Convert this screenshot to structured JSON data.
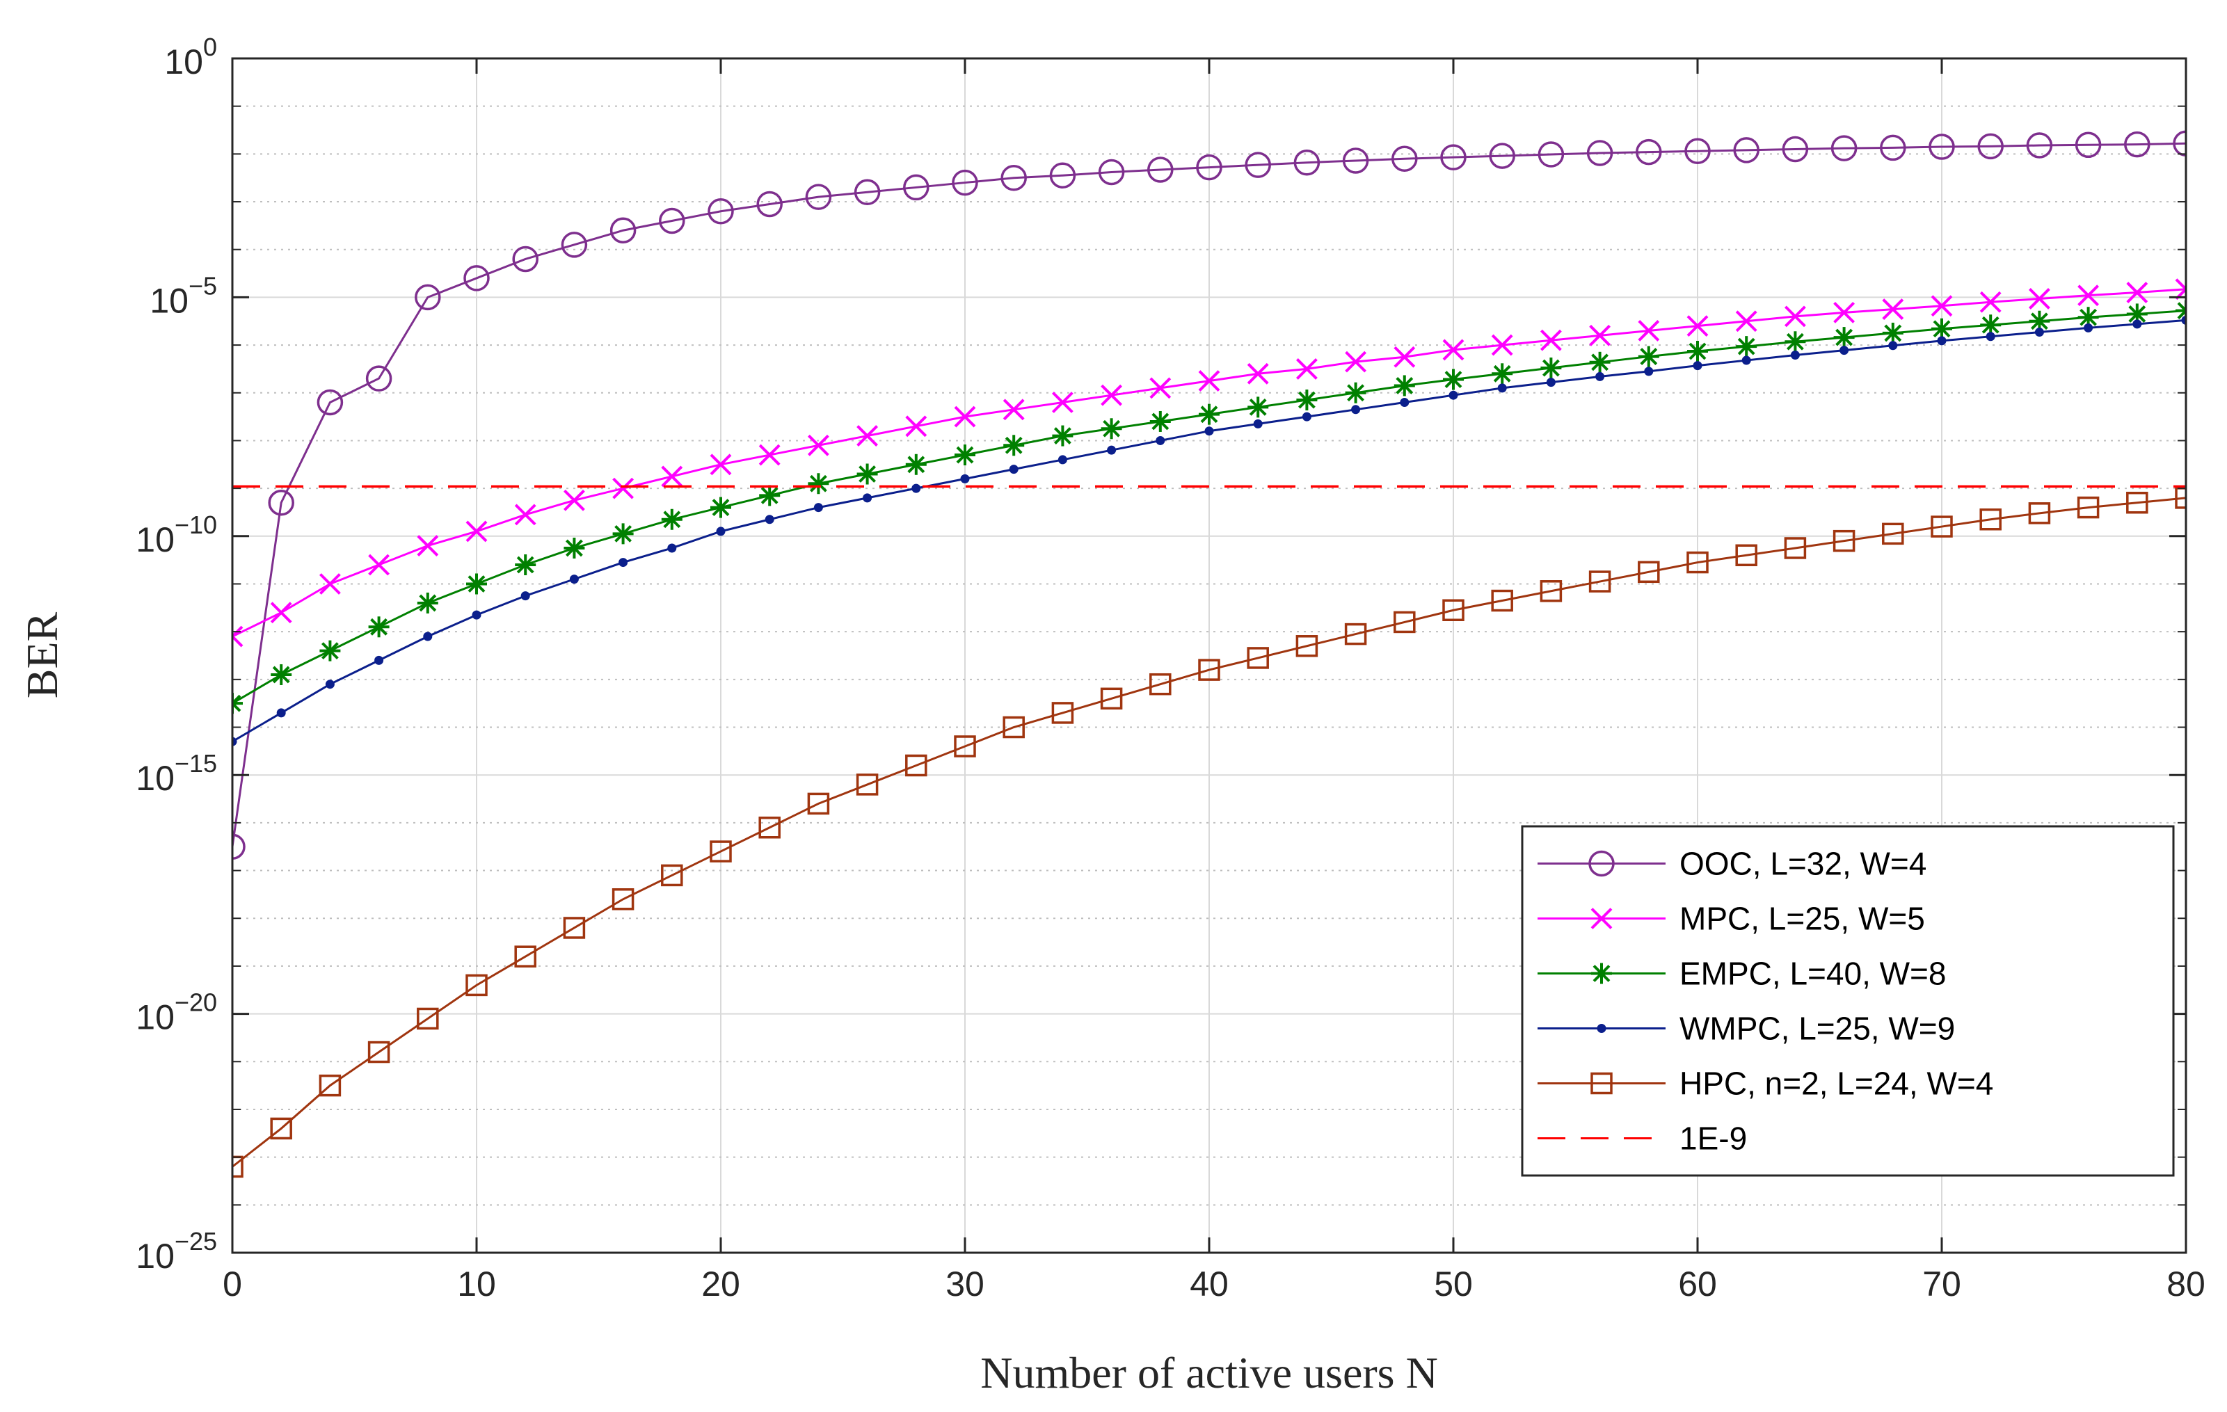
{
  "chart_data": {
    "type": "line",
    "xlabel": "Number of active users N",
    "ylabel": "BER",
    "xlim": [
      0,
      80
    ],
    "ylim_log10": [
      -25,
      0
    ],
    "yscale": "log",
    "grid": true,
    "legend_position": "bottom-right",
    "x_ticks": [
      {
        "value": 0,
        "label": "0"
      },
      {
        "value": 10,
        "label": "10"
      },
      {
        "value": 20,
        "label": "20"
      },
      {
        "value": 30,
        "label": "30"
      },
      {
        "value": 40,
        "label": "40"
      },
      {
        "value": 50,
        "label": "50"
      },
      {
        "value": 60,
        "label": "60"
      },
      {
        "value": 70,
        "label": "70"
      },
      {
        "value": 80,
        "label": "80"
      }
    ],
    "y_ticks": [
      {
        "exp": 0,
        "base": "10",
        "sup": "0"
      },
      {
        "exp": -5,
        "base": "10",
        "sup": "−5"
      },
      {
        "exp": -10,
        "base": "10",
        "sup": "−10"
      },
      {
        "exp": -15,
        "base": "10",
        "sup": "−15"
      },
      {
        "exp": -20,
        "base": "10",
        "sup": "−20"
      },
      {
        "exp": -25,
        "base": "10",
        "sup": "−25"
      }
    ],
    "series": [
      {
        "name": "OOC, L=32, W=4",
        "color": "#7E2F8E",
        "marker": "circle",
        "x": [
          0,
          2,
          4,
          6,
          8,
          10,
          12,
          14,
          16,
          18,
          20,
          22,
          24,
          26,
          28,
          30,
          32,
          34,
          36,
          38,
          40,
          42,
          44,
          46,
          48,
          50,
          52,
          54,
          56,
          58,
          60,
          62,
          64,
          66,
          68,
          70,
          72,
          74,
          76,
          78,
          80
        ],
        "log10_y": [
          -16.5,
          -9.3,
          -7.2,
          -6.7,
          -5.0,
          -4.6,
          -4.2,
          -3.9,
          -3.6,
          -3.4,
          -3.2,
          -3.05,
          -2.9,
          -2.8,
          -2.7,
          -2.6,
          -2.5,
          -2.45,
          -2.38,
          -2.33,
          -2.28,
          -2.23,
          -2.18,
          -2.14,
          -2.1,
          -2.07,
          -2.04,
          -2.01,
          -1.98,
          -1.96,
          -1.94,
          -1.92,
          -1.9,
          -1.88,
          -1.87,
          -1.85,
          -1.84,
          -1.82,
          -1.81,
          -1.8,
          -1.78
        ]
      },
      {
        "name": "MPC, L=25, W=5",
        "color": "#FF00FF",
        "marker": "x",
        "x": [
          0,
          2,
          4,
          6,
          8,
          10,
          12,
          14,
          16,
          18,
          20,
          22,
          24,
          26,
          28,
          30,
          32,
          34,
          36,
          38,
          40,
          42,
          44,
          46,
          48,
          50,
          52,
          54,
          56,
          58,
          60,
          62,
          64,
          66,
          68,
          70,
          72,
          74,
          76,
          78,
          80
        ],
        "log10_y": [
          -12.1,
          -11.6,
          -11.0,
          -10.6,
          -10.2,
          -9.9,
          -9.55,
          -9.25,
          -9.0,
          -8.75,
          -8.5,
          -8.3,
          -8.1,
          -7.9,
          -7.7,
          -7.5,
          -7.35,
          -7.2,
          -7.05,
          -6.9,
          -6.75,
          -6.6,
          -6.5,
          -6.35,
          -6.25,
          -6.1,
          -6.0,
          -5.9,
          -5.8,
          -5.7,
          -5.6,
          -5.5,
          -5.4,
          -5.32,
          -5.25,
          -5.18,
          -5.1,
          -5.03,
          -4.96,
          -4.9,
          -4.83
        ]
      },
      {
        "name": "EMPC, L=40, W=8",
        "color": "#008000",
        "marker": "star",
        "x": [
          0,
          2,
          4,
          6,
          8,
          10,
          12,
          14,
          16,
          18,
          20,
          22,
          24,
          26,
          28,
          30,
          32,
          34,
          36,
          38,
          40,
          42,
          44,
          46,
          48,
          50,
          52,
          54,
          56,
          58,
          60,
          62,
          64,
          66,
          68,
          70,
          72,
          74,
          76,
          78,
          80
        ],
        "log10_y": [
          -13.5,
          -12.9,
          -12.4,
          -11.9,
          -11.4,
          -11.0,
          -10.6,
          -10.25,
          -9.95,
          -9.65,
          -9.4,
          -9.15,
          -8.9,
          -8.7,
          -8.5,
          -8.3,
          -8.1,
          -7.9,
          -7.75,
          -7.6,
          -7.45,
          -7.3,
          -7.15,
          -7.0,
          -6.85,
          -6.72,
          -6.6,
          -6.48,
          -6.36,
          -6.24,
          -6.13,
          -6.03,
          -5.93,
          -5.84,
          -5.75,
          -5.66,
          -5.58,
          -5.5,
          -5.42,
          -5.35,
          -5.28
        ]
      },
      {
        "name": "WMPC, L=25, W=9",
        "color": "#0B1F8C",
        "marker": "dot",
        "x": [
          0,
          2,
          4,
          6,
          8,
          10,
          12,
          14,
          16,
          18,
          20,
          22,
          24,
          26,
          28,
          30,
          32,
          34,
          36,
          38,
          40,
          42,
          44,
          46,
          48,
          50,
          52,
          54,
          56,
          58,
          60,
          62,
          64,
          66,
          68,
          70,
          72,
          74,
          76,
          78,
          80
        ],
        "log10_y": [
          -14.3,
          -13.7,
          -13.1,
          -12.6,
          -12.1,
          -11.65,
          -11.25,
          -10.9,
          -10.55,
          -10.25,
          -9.9,
          -9.65,
          -9.4,
          -9.2,
          -9.0,
          -8.8,
          -8.6,
          -8.4,
          -8.2,
          -8.0,
          -7.8,
          -7.65,
          -7.5,
          -7.35,
          -7.2,
          -7.05,
          -6.9,
          -6.78,
          -6.66,
          -6.55,
          -6.43,
          -6.32,
          -6.21,
          -6.11,
          -6.01,
          -5.91,
          -5.82,
          -5.73,
          -5.64,
          -5.56,
          -5.48
        ]
      },
      {
        "name": "HPC, n=2, L=24, W=4",
        "color": "#A0350F",
        "marker": "square",
        "x": [
          0,
          2,
          4,
          6,
          8,
          10,
          12,
          14,
          16,
          18,
          20,
          22,
          24,
          26,
          28,
          30,
          32,
          34,
          36,
          38,
          40,
          42,
          44,
          46,
          48,
          50,
          52,
          54,
          56,
          58,
          60,
          62,
          64,
          66,
          68,
          70,
          72,
          74,
          76,
          78,
          80
        ],
        "log10_y": [
          -23.2,
          -22.4,
          -21.5,
          -20.8,
          -20.1,
          -19.4,
          -18.8,
          -18.2,
          -17.6,
          -17.1,
          -16.6,
          -16.1,
          -15.6,
          -15.2,
          -14.8,
          -14.4,
          -14.0,
          -13.7,
          -13.4,
          -13.1,
          -12.8,
          -12.55,
          -12.3,
          -12.05,
          -11.8,
          -11.55,
          -11.35,
          -11.15,
          -10.95,
          -10.75,
          -10.55,
          -10.4,
          -10.25,
          -10.1,
          -9.95,
          -9.8,
          -9.65,
          -9.52,
          -9.4,
          -9.3,
          -9.2
        ]
      },
      {
        "name": "1E-9",
        "color": "#FF0000",
        "marker": "none",
        "dashed": true,
        "x": [
          0,
          80
        ],
        "log10_y": [
          -8.96,
          -8.96
        ]
      }
    ]
  }
}
